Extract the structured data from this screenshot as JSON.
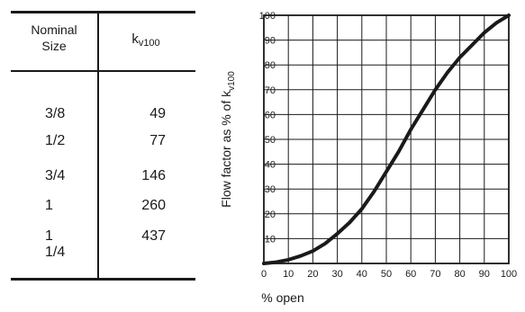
{
  "table": {
    "header_size_line1": "Nominal",
    "header_size_line2": "Size",
    "header_kv_main": "k",
    "header_kv_sub": "v100",
    "rows": [
      {
        "size": "3/8",
        "kv": "49"
      },
      {
        "size": "1/2",
        "kv": "77"
      },
      {
        "size": "3/4",
        "kv": "146"
      },
      {
        "size": "1",
        "kv": "260"
      },
      {
        "size": "1 1/4",
        "kv": "437"
      }
    ]
  },
  "chart_data": {
    "type": "line",
    "xlabel": "% open",
    "ylabel_main": "Flow factor as % of k",
    "ylabel_sub": "v100",
    "xlim": [
      0,
      100
    ],
    "ylim": [
      0,
      100
    ],
    "x_ticks": [
      0,
      10,
      20,
      30,
      40,
      50,
      60,
      70,
      80,
      90,
      100
    ],
    "y_ticks": [
      0,
      10,
      20,
      30,
      40,
      50,
      60,
      70,
      80,
      90,
      100
    ],
    "grid": true,
    "series": [
      {
        "x": [
          0,
          5,
          10,
          15,
          20,
          25,
          30,
          35,
          40,
          45,
          50,
          55,
          60,
          65,
          70,
          75,
          80,
          85,
          90,
          95,
          100
        ],
        "y": [
          0,
          0.5,
          1.5,
          3,
          5,
          8,
          12,
          16.5,
          22,
          29,
          37,
          45,
          54,
          62,
          70,
          77,
          83,
          88,
          93,
          97,
          100
        ]
      }
    ]
  }
}
